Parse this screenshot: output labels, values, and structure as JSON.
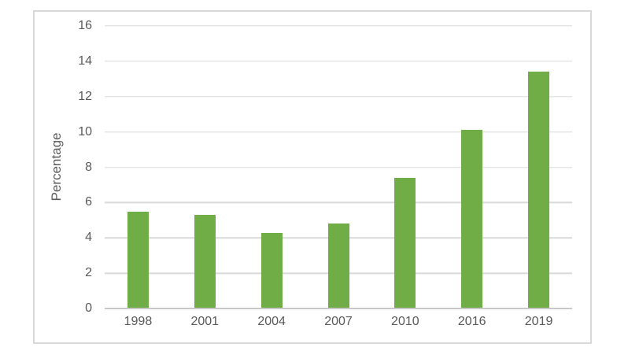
{
  "chart_data": {
    "type": "bar",
    "categories": [
      "1998",
      "2001",
      "2004",
      "2007",
      "2010",
      "2016",
      "2019"
    ],
    "values": [
      5.5,
      5.3,
      4.3,
      4.8,
      7.4,
      10.1,
      13.4
    ],
    "title": "",
    "xlabel": "",
    "ylabel": "Percentage",
    "ylim": [
      0,
      16
    ],
    "yticks": [
      0,
      2,
      4,
      6,
      8,
      10,
      12,
      14,
      16
    ],
    "grid": true,
    "legend": false,
    "colors": {
      "bar": "#70AD47",
      "gridline": "#D9D9D9",
      "axis_line": "#C9C9C9",
      "text": "#595959",
      "frame_border": "#D9D9D9",
      "background": "#FFFFFF"
    }
  }
}
